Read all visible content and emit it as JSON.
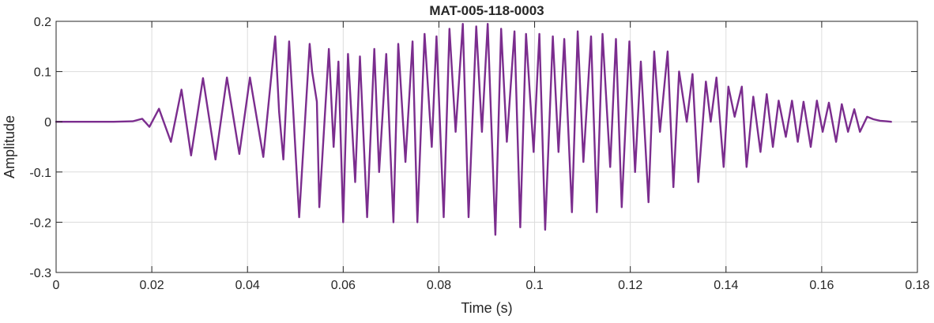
{
  "chart_data": {
    "type": "line",
    "title": "MAT-005-118-0003",
    "xlabel": "Time (s)",
    "ylabel": "Amplitude",
    "xlim": [
      0,
      0.18
    ],
    "ylim": [
      -0.3,
      0.2
    ],
    "xticks": [
      0,
      0.02,
      0.04,
      0.06,
      0.08,
      0.1,
      0.12,
      0.14,
      0.16,
      0.18
    ],
    "xtick_labels": [
      "0",
      "0.02",
      "0.04",
      "0.06",
      "0.08",
      "0.1",
      "0.12",
      "0.14",
      "0.16",
      "0.18"
    ],
    "yticks": [
      -0.3,
      -0.2,
      -0.1,
      0,
      0.1,
      0.2
    ],
    "ytick_labels": [
      "-0.3",
      "-0.2",
      "-0.1",
      "0",
      "0.1",
      "0.2"
    ],
    "grid": true,
    "series": [
      {
        "color": "#7b2d8e",
        "x": [
          0,
          0.004,
          0.008,
          0.012,
          0.016,
          0.018,
          0.0195,
          0.0215,
          0.024,
          0.0262,
          0.0282,
          0.0307,
          0.0333,
          0.0357,
          0.0383,
          0.0405,
          0.0433,
          0.0458,
          0.0466,
          0.0475,
          0.0487,
          0.0495,
          0.0508,
          0.053,
          0.0535,
          0.0545,
          0.055,
          0.057,
          0.058,
          0.059,
          0.06,
          0.061,
          0.0625,
          0.0635,
          0.065,
          0.0665,
          0.0675,
          0.069,
          0.0705,
          0.0715,
          0.073,
          0.0745,
          0.0755,
          0.077,
          0.0785,
          0.0795,
          0.081,
          0.0822,
          0.0835,
          0.085,
          0.0862,
          0.0878,
          0.089,
          0.0902,
          0.0918,
          0.093,
          0.0942,
          0.0958,
          0.097,
          0.0982,
          0.0998,
          0.101,
          0.1022,
          0.1038,
          0.105,
          0.1062,
          0.1078,
          0.109,
          0.1102,
          0.1118,
          0.113,
          0.1142,
          0.1158,
          0.117,
          0.1182,
          0.1198,
          0.121,
          0.1222,
          0.1238,
          0.125,
          0.1262,
          0.1278,
          0.129,
          0.1302,
          0.1318,
          0.133,
          0.1342,
          0.1358,
          0.1368,
          0.138,
          0.1395,
          0.1405,
          0.1418,
          0.1433,
          0.1443,
          0.1457,
          0.1472,
          0.1485,
          0.1498,
          0.151,
          0.1525,
          0.1538,
          0.155,
          0.1562,
          0.1577,
          0.159,
          0.1602,
          0.1615,
          0.163,
          0.1642,
          0.1655,
          0.1668,
          0.168,
          0.1695,
          0.1708,
          0.1722,
          0.1735,
          0.1745
        ],
        "values": [
          0.0,
          0.0,
          0.0,
          0.0,
          0.001,
          0.006,
          -0.01,
          0.026,
          -0.04,
          0.064,
          -0.067,
          0.087,
          -0.075,
          0.088,
          -0.064,
          0.088,
          -0.07,
          0.17,
          0.02,
          -0.075,
          0.16,
          0.03,
          -0.19,
          0.155,
          0.1,
          0.04,
          -0.17,
          0.145,
          -0.05,
          0.12,
          -0.2,
          0.135,
          -0.12,
          0.13,
          -0.19,
          0.145,
          -0.1,
          0.135,
          -0.2,
          0.155,
          -0.08,
          0.16,
          -0.2,
          0.175,
          -0.05,
          0.17,
          -0.19,
          0.185,
          -0.02,
          0.195,
          -0.19,
          0.19,
          -0.02,
          0.195,
          -0.225,
          0.185,
          -0.04,
          0.18,
          -0.21,
          0.175,
          -0.06,
          0.175,
          -0.215,
          0.17,
          -0.06,
          0.165,
          -0.18,
          0.18,
          -0.08,
          0.17,
          -0.18,
          0.175,
          -0.09,
          0.165,
          -0.17,
          0.16,
          -0.1,
          0.12,
          -0.16,
          0.14,
          -0.02,
          0.14,
          -0.13,
          0.1,
          0.0,
          0.095,
          -0.12,
          0.08,
          0.0,
          0.088,
          -0.09,
          0.07,
          0.01,
          0.07,
          -0.09,
          0.05,
          -0.06,
          0.055,
          -0.05,
          0.042,
          -0.03,
          0.042,
          -0.04,
          0.04,
          -0.05,
          0.042,
          -0.02,
          0.038,
          -0.04,
          0.035,
          -0.02,
          0.025,
          -0.02,
          0.01,
          0.005,
          0.002,
          0.001,
          0.0
        ]
      }
    ]
  }
}
